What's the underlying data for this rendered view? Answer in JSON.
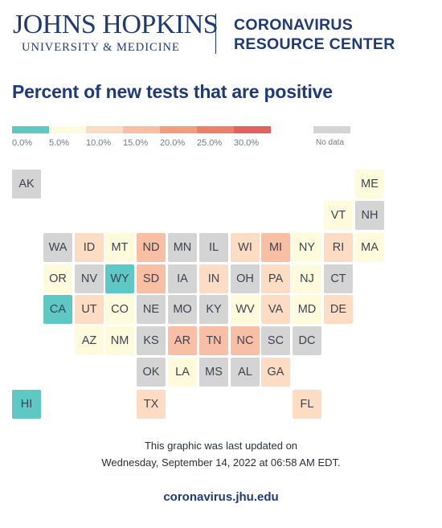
{
  "header": {
    "org_name": "JOHNS HOPKINS",
    "org_sub": "UNIVERSITY & MEDICINE",
    "center_line1": "CORONAVIRUS",
    "center_line2": "RESOURCE CENTER"
  },
  "title": "Percent of new tests that are positive",
  "legend": {
    "bins": [
      {
        "label": "0.0%",
        "color": "#5ec8c4"
      },
      {
        "label": "5.0%",
        "color": "#fdfbdc"
      },
      {
        "label": "10.0%",
        "color": "#fddcc4"
      },
      {
        "label": "15.0%",
        "color": "#f9bfa4"
      },
      {
        "label": "20.0%",
        "color": "#f39d80"
      },
      {
        "label": "25.0%",
        "color": "#ee8069"
      },
      {
        "label": "30.0%",
        "color": "#e3625d"
      }
    ],
    "no_data": {
      "label": "No data",
      "color": "#d4d4d4"
    }
  },
  "states": [
    {
      "code": "AK",
      "bin": "none"
    },
    {
      "code": "ME",
      "bin": "b1"
    },
    {
      "code": "VT",
      "bin": "b1"
    },
    {
      "code": "NH",
      "bin": "none"
    },
    {
      "code": "WA",
      "bin": "none"
    },
    {
      "code": "ID",
      "bin": "b2"
    },
    {
      "code": "MT",
      "bin": "b1"
    },
    {
      "code": "ND",
      "bin": "b3"
    },
    {
      "code": "MN",
      "bin": "none"
    },
    {
      "code": "IL",
      "bin": "none"
    },
    {
      "code": "WI",
      "bin": "b2"
    },
    {
      "code": "MI",
      "bin": "b3"
    },
    {
      "code": "NY",
      "bin": "b1"
    },
    {
      "code": "RI",
      "bin": "b2"
    },
    {
      "code": "MA",
      "bin": "b1"
    },
    {
      "code": "OR",
      "bin": "b1"
    },
    {
      "code": "NV",
      "bin": "none"
    },
    {
      "code": "WY",
      "bin": "b0"
    },
    {
      "code": "SD",
      "bin": "b3"
    },
    {
      "code": "IA",
      "bin": "none"
    },
    {
      "code": "IN",
      "bin": "b2"
    },
    {
      "code": "OH",
      "bin": "none"
    },
    {
      "code": "PA",
      "bin": "b2"
    },
    {
      "code": "NJ",
      "bin": "b1"
    },
    {
      "code": "CT",
      "bin": "none"
    },
    {
      "code": "CA",
      "bin": "b0"
    },
    {
      "code": "UT",
      "bin": "b2"
    },
    {
      "code": "CO",
      "bin": "b1"
    },
    {
      "code": "NE",
      "bin": "none"
    },
    {
      "code": "MO",
      "bin": "none"
    },
    {
      "code": "KY",
      "bin": "none"
    },
    {
      "code": "WV",
      "bin": "b1"
    },
    {
      "code": "VA",
      "bin": "b2"
    },
    {
      "code": "MD",
      "bin": "b1"
    },
    {
      "code": "DE",
      "bin": "b2"
    },
    {
      "code": "AZ",
      "bin": "b1"
    },
    {
      "code": "NM",
      "bin": "b1"
    },
    {
      "code": "KS",
      "bin": "none"
    },
    {
      "code": "AR",
      "bin": "b3"
    },
    {
      "code": "TN",
      "bin": "b3"
    },
    {
      "code": "NC",
      "bin": "b3"
    },
    {
      "code": "SC",
      "bin": "none"
    },
    {
      "code": "DC",
      "bin": "none"
    },
    {
      "code": "OK",
      "bin": "none"
    },
    {
      "code": "LA",
      "bin": "b1"
    },
    {
      "code": "MS",
      "bin": "none"
    },
    {
      "code": "AL",
      "bin": "none"
    },
    {
      "code": "GA",
      "bin": "b2"
    },
    {
      "code": "HI",
      "bin": "b0"
    },
    {
      "code": "TX",
      "bin": "b2"
    },
    {
      "code": "FL",
      "bin": "b2"
    }
  ],
  "footer": {
    "updated_line1": "This graphic was last updated on",
    "updated_line2": "Wednesday, September 14, 2022 at 06:58 AM EDT.",
    "url": "coronavirus.jhu.edu"
  }
}
